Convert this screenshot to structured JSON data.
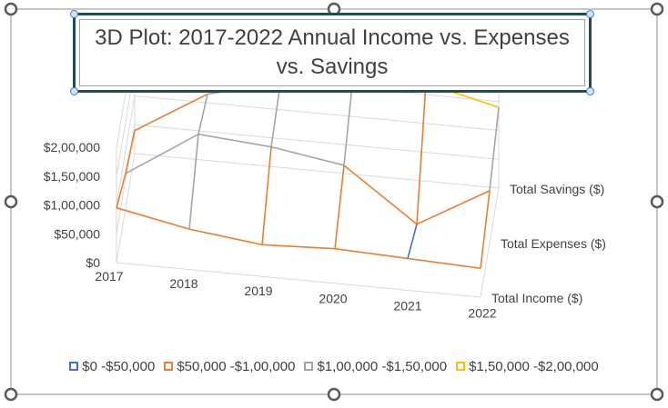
{
  "colors": {
    "band1": "#4472c4",
    "band2": "#ed7d31",
    "band3": "#a5a5a5",
    "band4": "#ffc000",
    "grid": "#d9d9d9",
    "frame": "#7f7f7f",
    "title_border": "#1f4e4e"
  },
  "chart_data": {
    "type": "surface-3d",
    "title": "3D Plot: 2017-2022 Annual Income vs. Expenses vs. Savings",
    "x": {
      "label": "",
      "categories": [
        "2017",
        "2018",
        "2019",
        "2020",
        "2021",
        "2022"
      ]
    },
    "z": {
      "label": "",
      "categories": [
        "Total Income ($)",
        "Total Expenses ($)",
        "Total Savings ($)"
      ]
    },
    "y": {
      "label": "",
      "ticks": [
        "$0",
        "$50,000",
        "$1,00,000",
        "$1,50,000",
        "$2,00,000"
      ],
      "tick_values": [
        0,
        50000,
        100000,
        150000,
        200000
      ],
      "ylim": [
        0,
        200000
      ]
    },
    "series": [
      {
        "name": "Total Income ($)",
        "values": [
          95000,
          70000,
          55000,
          60000,
          55000,
          50000
        ]
      },
      {
        "name": "Total Expenses ($)",
        "values": [
          60000,
          140000,
          130000,
          110000,
          20000,
          90000
        ]
      },
      {
        "name": "Total Savings ($)",
        "values": [
          40000,
          115000,
          145000,
          170000,
          170000,
          140000
        ]
      }
    ],
    "legend": {
      "position": "bottom",
      "entries": [
        "$0 -$50,000",
        "$50,000 -$1,00,000",
        "$1,00,000 -$1,50,000",
        "$1,50,000 -$2,00,000"
      ]
    },
    "grid": true
  }
}
